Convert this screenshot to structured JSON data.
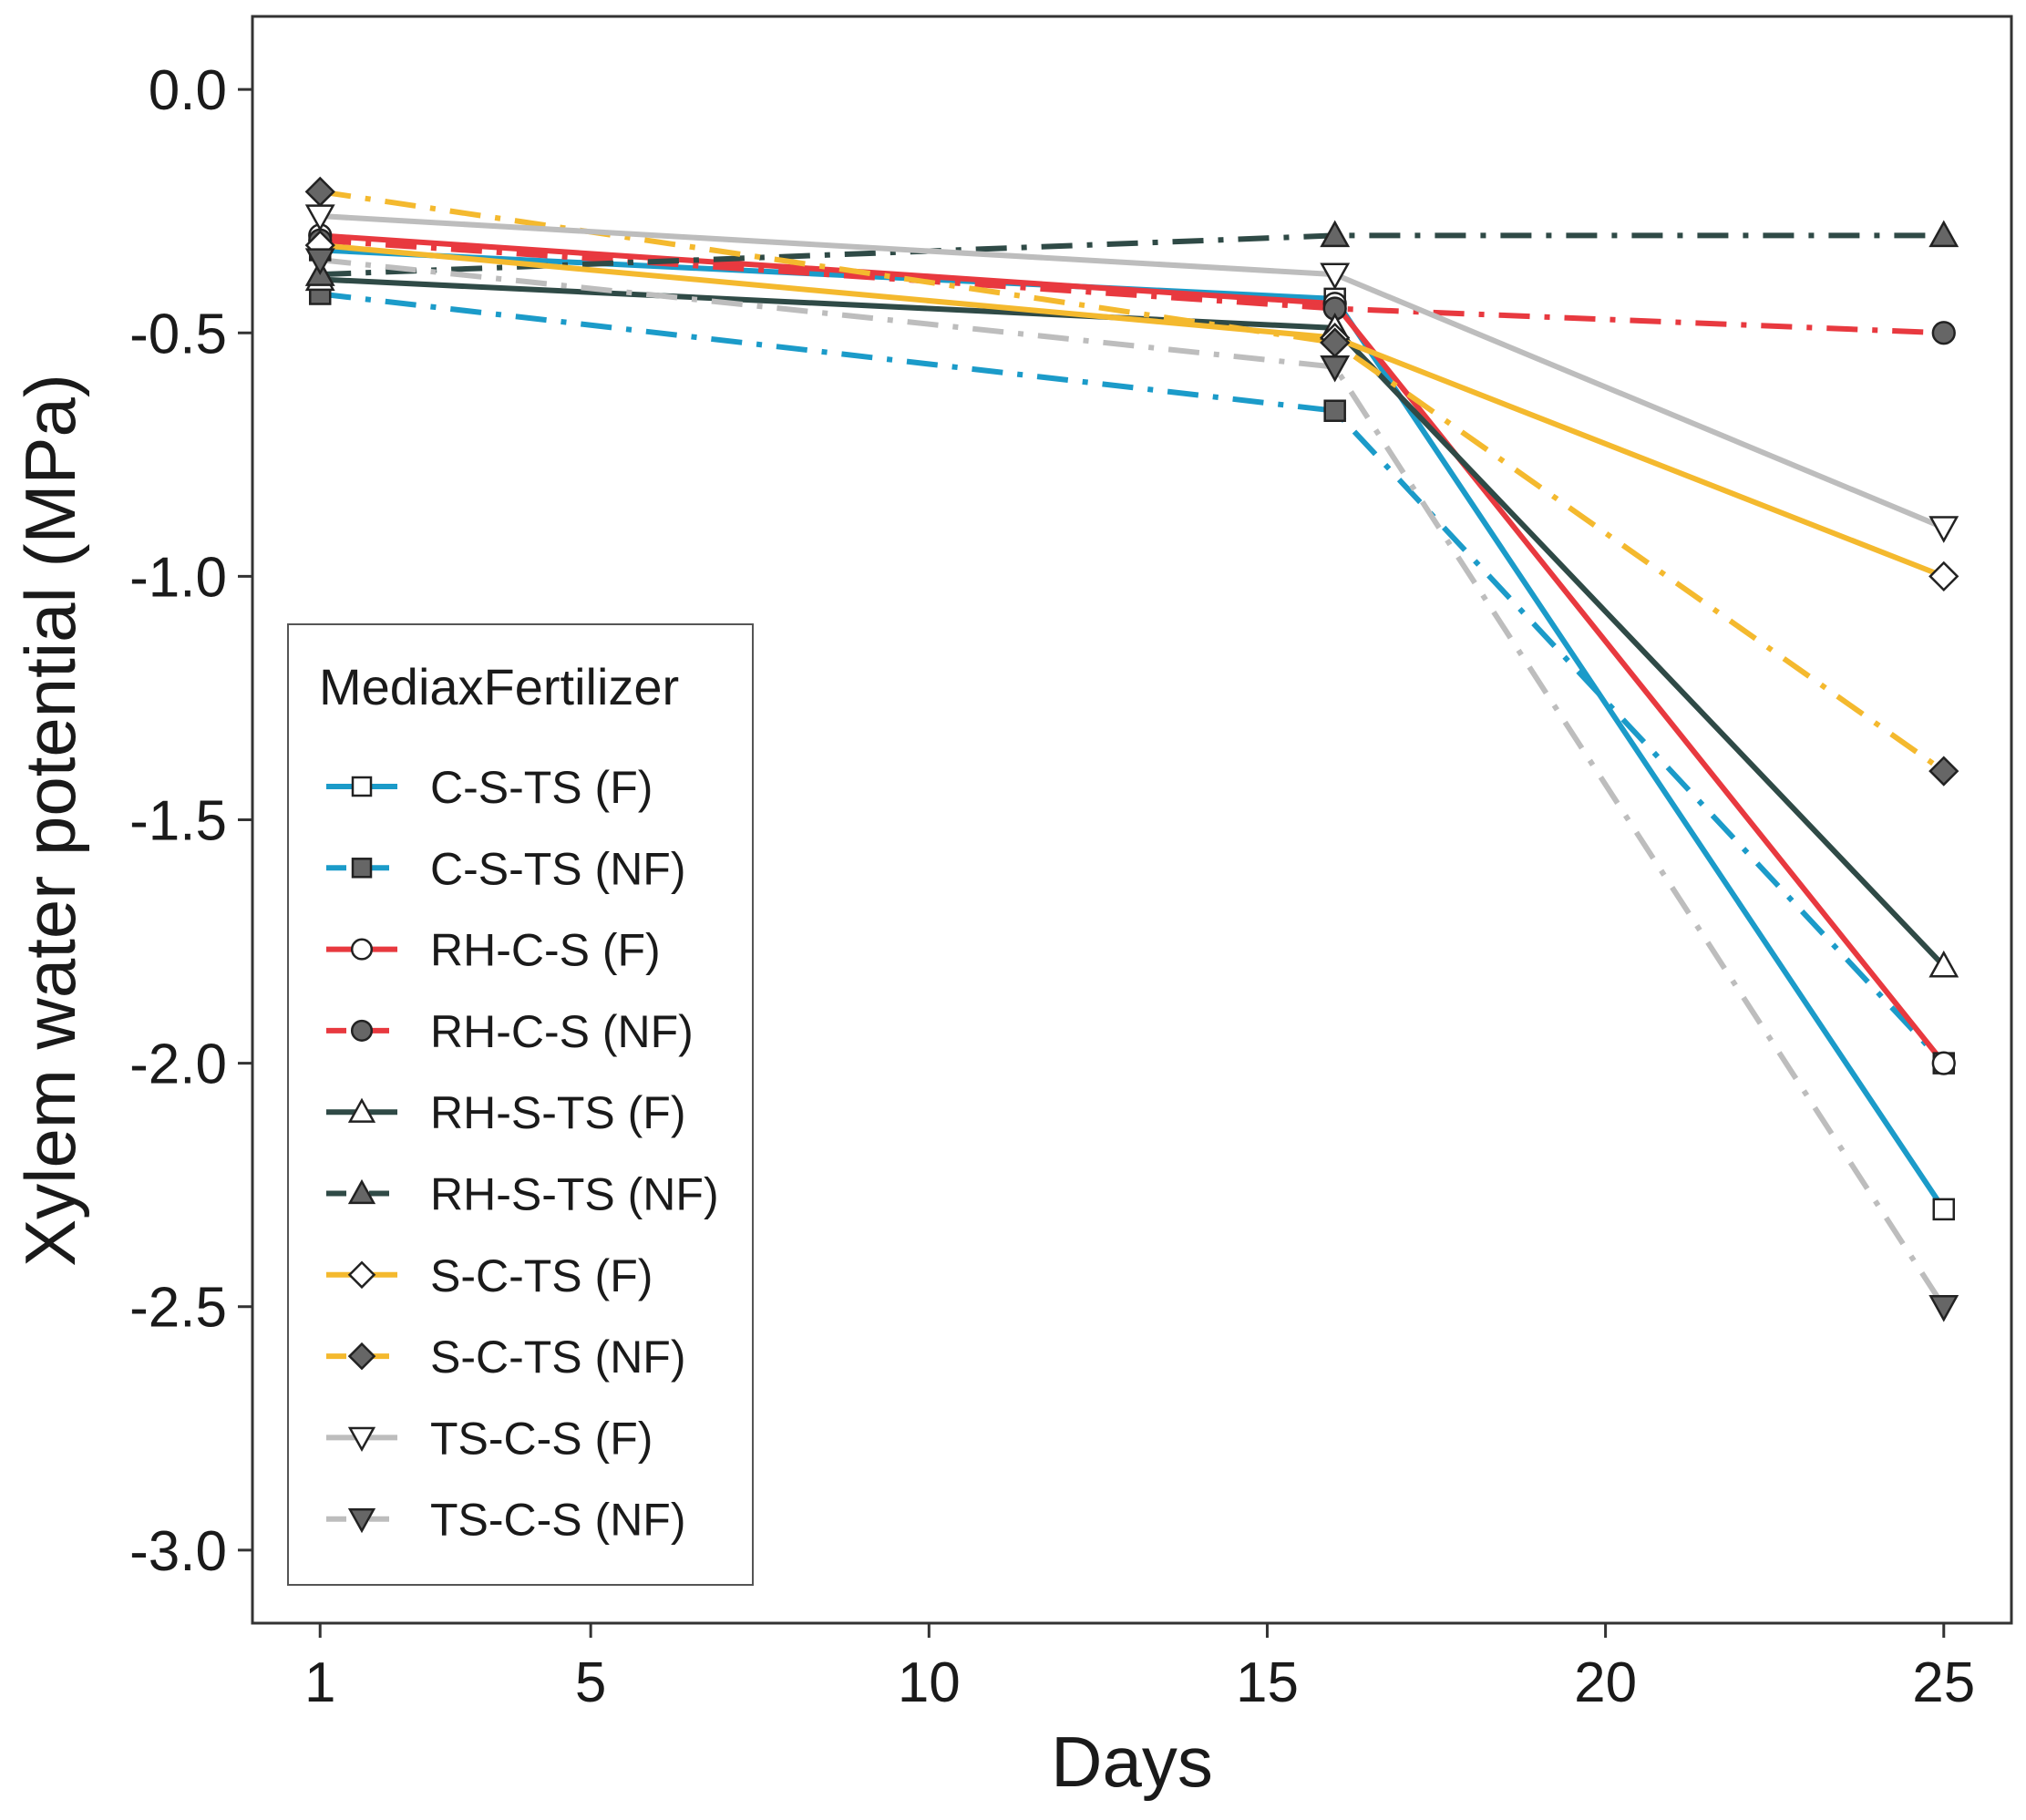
{
  "chart_data": {
    "type": "line",
    "title": "",
    "xlabel": "Days",
    "ylabel": "Xylem water potential (MPa)",
    "xlim": [
      0,
      26
    ],
    "ylim": [
      -3.15,
      0.15
    ],
    "x_ticks": [
      1,
      5,
      10,
      15,
      20,
      25
    ],
    "y_ticks": [
      0.0,
      -0.5,
      -1.0,
      -1.5,
      -2.0,
      -2.5,
      -3.0
    ],
    "x_tick_labels": [
      "1",
      "5",
      "10",
      "15",
      "20",
      "25"
    ],
    "y_tick_labels": [
      "0.0",
      "-0.5",
      "-1.0",
      "-1.5",
      "-2.0",
      "-2.5",
      "-3.0"
    ],
    "grid": false,
    "legend": {
      "title": "MediaxFertilizer",
      "placement": "bottom-left"
    },
    "x": [
      1,
      16,
      25
    ],
    "series": [
      {
        "name": "C-S-TS (F)",
        "values": [
          -0.33,
          -0.43,
          -2.3
        ],
        "color": "#1b9bc9",
        "dash": "solid",
        "marker": "square",
        "filled": false
      },
      {
        "name": "C-S-TS (NF)",
        "values": [
          -0.42,
          -0.66,
          -2.0
        ],
        "color": "#1b9bc9",
        "dash": "dashdot",
        "marker": "square",
        "filled": true
      },
      {
        "name": "RH-C-S (F)",
        "values": [
          -0.3,
          -0.44,
          -2.0
        ],
        "color": "#e8393f",
        "dash": "solid",
        "marker": "circle",
        "filled": false
      },
      {
        "name": "RH-C-S (NF)",
        "values": [
          -0.31,
          -0.45,
          -0.5
        ],
        "color": "#e8393f",
        "dash": "dashdot",
        "marker": "circle",
        "filled": true
      },
      {
        "name": "RH-S-TS (F)",
        "values": [
          -0.39,
          -0.49,
          -1.8
        ],
        "color": "#2f4a46",
        "dash": "solid",
        "marker": "triangle-up",
        "filled": false
      },
      {
        "name": "RH-S-TS (NF)",
        "values": [
          -0.38,
          -0.3,
          -0.3
        ],
        "color": "#2f4a46",
        "dash": "dashdot",
        "marker": "triangle-up",
        "filled": true
      },
      {
        "name": "S-C-TS (F)",
        "values": [
          -0.32,
          -0.51,
          -1.0
        ],
        "color": "#f4b92e",
        "dash": "solid",
        "marker": "diamond",
        "filled": false
      },
      {
        "name": "S-C-TS (NF)",
        "values": [
          -0.21,
          -0.52,
          -1.4
        ],
        "color": "#f4b92e",
        "dash": "dashdot",
        "marker": "diamond",
        "filled": true
      },
      {
        "name": "TS-C-S (F)",
        "values": [
          -0.26,
          -0.38,
          -0.9
        ],
        "color": "#bdbdbd",
        "dash": "solid",
        "marker": "triangle-down",
        "filled": false
      },
      {
        "name": "TS-C-S (NF)",
        "values": [
          -0.35,
          -0.57,
          -2.5
        ],
        "color": "#bdbdbd",
        "dash": "dashdot",
        "marker": "triangle-down",
        "filled": true
      }
    ]
  }
}
